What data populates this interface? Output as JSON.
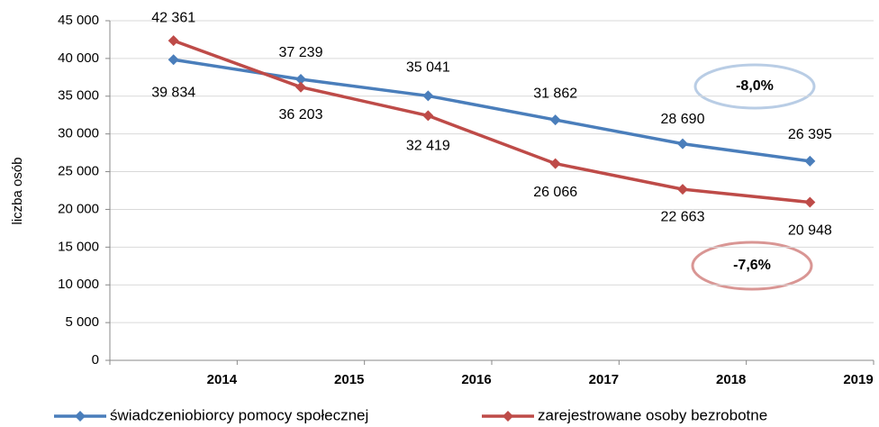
{
  "chart_data": {
    "type": "line",
    "y_label": "liczba osób",
    "categories": [
      "2014",
      "2015",
      "2016",
      "2017",
      "2018",
      "2019"
    ],
    "series": [
      {
        "name": "świadczeniobiorcy pomocy społecznej",
        "color": "#4a7ebb",
        "values": [
          39834,
          37239,
          35041,
          31862,
          28690,
          26395
        ],
        "value_labels": [
          "39 834",
          "37 239",
          "35 041",
          "31 862",
          "28 690",
          "26 395"
        ]
      },
      {
        "name": "zarejestrowane osoby bezrobotne",
        "color": "#be4b48",
        "values": [
          42361,
          36203,
          32419,
          26066,
          22663,
          20948
        ],
        "value_labels": [
          "42 361",
          "36 203",
          "32 419",
          "26 066",
          "22 663",
          "20 948"
        ]
      }
    ],
    "annotations": [
      "-8,0%",
      "-7,6%"
    ],
    "ylim": [
      0,
      45000
    ],
    "yticks": [
      0,
      {
        "value": 5000,
        "label": "5 000"
      },
      {
        "value": 10000,
        "label": "10 000"
      },
      {
        "value": 15000,
        "label": "15 000"
      },
      {
        "value": 20000,
        "label": "20 000"
      },
      {
        "value": 25000,
        "label": "25 000"
      },
      {
        "value": 30000,
        "label": "30 000"
      },
      {
        "value": 35000,
        "label": "35 000"
      },
      {
        "value": 40000,
        "label": "40 000"
      },
      {
        "value": 45000,
        "label": "45 000"
      }
    ],
    "grid": true
  }
}
